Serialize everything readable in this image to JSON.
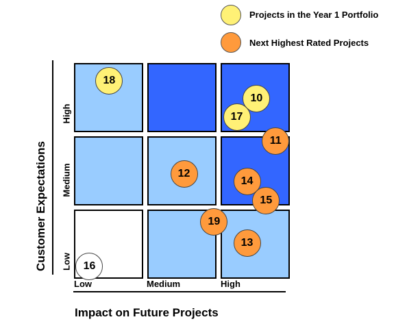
{
  "colors": {
    "year1": "#fff176",
    "next": "#ff9a3c",
    "none": "#ffffff",
    "light": "#99ccff",
    "dark": "#3366ff"
  },
  "legend": [
    {
      "label": "Projects in the Year 1 Portfolio",
      "group": "year1"
    },
    {
      "label": "Next Highest Rated Projects",
      "group": "next"
    }
  ],
  "x_axis": {
    "title": "Impact on Future Projects",
    "ticks": [
      "Low",
      "Medium",
      "High"
    ]
  },
  "y_axis": {
    "title": "Customer Expectations",
    "ticks": [
      "Low",
      "Medium",
      "High"
    ]
  },
  "grid_fill": [
    [
      "none",
      "light",
      "light"
    ],
    [
      "light",
      "light",
      "dark"
    ],
    [
      "light",
      "dark",
      "dark"
    ]
  ],
  "projects": [
    {
      "id": "18",
      "impact": 0.48,
      "expect": 2.76,
      "group": "year1"
    },
    {
      "id": "10",
      "impact": 2.49,
      "expect": 2.51,
      "group": "year1"
    },
    {
      "id": "17",
      "impact": 2.22,
      "expect": 2.26,
      "group": "year1"
    },
    {
      "id": "11",
      "impact": 2.75,
      "expect": 1.93,
      "group": "next"
    },
    {
      "id": "12",
      "impact": 1.5,
      "expect": 1.49,
      "group": "next"
    },
    {
      "id": "14",
      "impact": 2.36,
      "expect": 1.38,
      "group": "next"
    },
    {
      "id": "15",
      "impact": 2.62,
      "expect": 1.12,
      "group": "next"
    },
    {
      "id": "19",
      "impact": 1.91,
      "expect": 0.83,
      "group": "next"
    },
    {
      "id": "13",
      "impact": 2.36,
      "expect": 0.54,
      "group": "next"
    },
    {
      "id": "16",
      "impact": 0.21,
      "expect": 0.22,
      "group": "none"
    }
  ]
}
